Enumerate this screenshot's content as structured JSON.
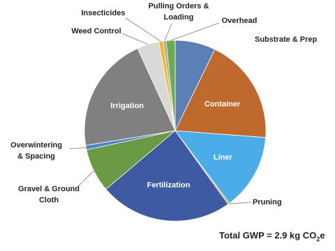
{
  "chart_data": {
    "type": "pie",
    "categories": [
      "Substrate & Prep",
      "Container",
      "Liner",
      "Pruning",
      "Fertilization",
      "Gravel & Ground Cloth",
      "Overwintering & Spacing",
      "Irrigation",
      "Weed Control",
      "Insecticides",
      "Pulling Orders & Loading",
      "Overhead"
    ],
    "values": [
      7.2,
      19.0,
      13.6,
      0.3,
      23.7,
      7.8,
      0.8,
      20.8,
      3.9,
      0.8,
      0.5,
      1.6
    ],
    "colors": [
      "#5b80b8",
      "#c0692f",
      "#4bacea",
      "#c9a227",
      "#3e5ba1",
      "#6b9a45",
      "#4a86c8",
      "#808080",
      "#d9d9d9",
      "#f4b82b",
      "#a5a5a5",
      "#6aab4f"
    ],
    "annotation": {
      "text": "Total GWP = 2.9 kg CO",
      "subscript": "2",
      "suffix": "e"
    }
  }
}
